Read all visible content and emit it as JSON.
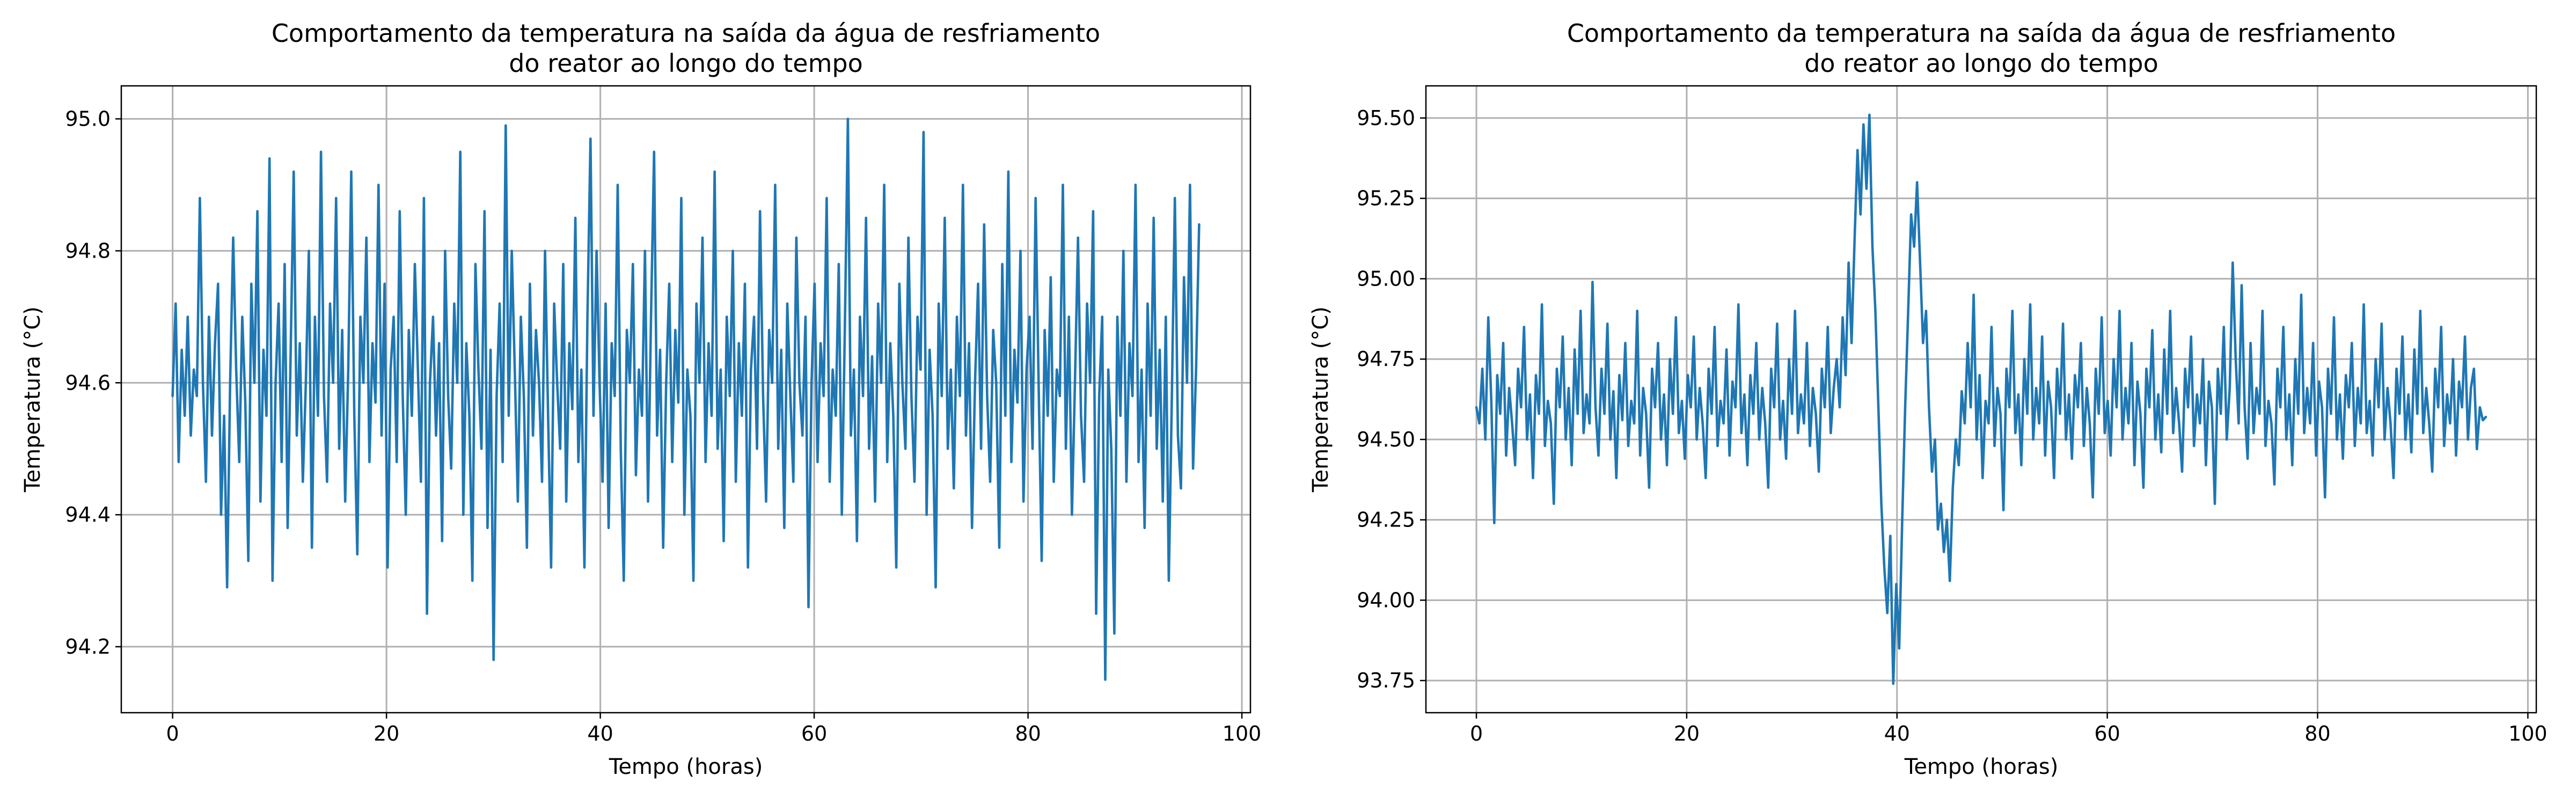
{
  "colors": {
    "series": "#1f77b4",
    "grid": "#b0b0b0",
    "axes": "#000000",
    "background": "#ffffff"
  },
  "chart_data": [
    {
      "type": "line",
      "title_line1": "Comportamento da temperatura na saída da água de resfriamento",
      "title_line2": "do reator ao longo do tempo",
      "xlabel": "Tempo (horas)",
      "ylabel": "Temperatura (°C)",
      "xlim": [
        -4.8,
        100.8
      ],
      "ylim": [
        94.1,
        95.05
      ],
      "xticks": [
        0,
        20,
        40,
        60,
        80,
        100
      ],
      "xtick_labels": [
        "0",
        "20",
        "40",
        "60",
        "80",
        "100"
      ],
      "yticks": [
        94.2,
        94.4,
        94.6,
        94.8,
        95.0
      ],
      "ytick_labels": [
        "94.2",
        "94.4",
        "94.6",
        "94.8",
        "95.0"
      ],
      "grid": true,
      "legend": "none",
      "series": [
        {
          "x_start": 0,
          "x_end": 96,
          "values": [
            94.58,
            94.72,
            94.48,
            94.65,
            94.55,
            94.7,
            94.52,
            94.62,
            94.58,
            94.88,
            94.6,
            94.45,
            94.7,
            94.52,
            94.66,
            94.75,
            94.4,
            94.55,
            94.29,
            94.6,
            94.82,
            94.62,
            94.48,
            94.7,
            94.57,
            94.33,
            94.75,
            94.6,
            94.86,
            94.42,
            94.65,
            94.55,
            94.94,
            94.3,
            94.6,
            94.72,
            94.48,
            94.78,
            94.38,
            94.65,
            94.92,
            94.52,
            94.66,
            94.45,
            94.6,
            94.8,
            94.35,
            94.7,
            94.55,
            94.95,
            94.58,
            94.45,
            94.72,
            94.6,
            94.88,
            94.5,
            94.68,
            94.42,
            94.62,
            94.92,
            94.55,
            94.34,
            94.7,
            94.6,
            94.82,
            94.48,
            94.66,
            94.57,
            94.9,
            94.52,
            94.75,
            94.32,
            94.62,
            94.7,
            94.48,
            94.86,
            94.58,
            94.4,
            94.68,
            94.55,
            94.78,
            94.62,
            94.45,
            94.88,
            94.25,
            94.6,
            94.7,
            94.52,
            94.66,
            94.36,
            94.8,
            94.58,
            94.47,
            94.72,
            94.6,
            94.95,
            94.4,
            94.66,
            94.55,
            94.3,
            94.78,
            94.62,
            94.5,
            94.86,
            94.38,
            94.65,
            94.18,
            94.58,
            94.72,
            94.48,
            94.99,
            94.55,
            94.8,
            94.62,
            94.42,
            94.7,
            94.58,
            94.35,
            94.75,
            94.52,
            94.68,
            94.6,
            94.45,
            94.8,
            94.55,
            94.32,
            94.72,
            94.6,
            94.5,
            94.78,
            94.42,
            94.66,
            94.56,
            94.85,
            94.48,
            94.62,
            94.32,
            94.7,
            94.97,
            94.55,
            94.8,
            94.6,
            94.45,
            94.72,
            94.38,
            94.66,
            94.58,
            94.9,
            94.5,
            94.3,
            94.68,
            94.6,
            94.78,
            94.46,
            94.62,
            94.55,
            94.8,
            94.42,
            94.7,
            94.95,
            94.52,
            94.65,
            94.35,
            94.6,
            94.75,
            94.48,
            94.68,
            94.57,
            94.88,
            94.4,
            94.62,
            94.55,
            94.3,
            94.72,
            94.6,
            94.82,
            94.48,
            94.66,
            94.55,
            94.92,
            94.5,
            94.62,
            94.36,
            94.7,
            94.58,
            94.8,
            94.45,
            94.66,
            94.55,
            94.75,
            94.32,
            94.62,
            94.7,
            94.5,
            94.86,
            94.58,
            94.42,
            94.68,
            94.6,
            94.9,
            94.5,
            94.65,
            94.38,
            94.72,
            94.58,
            94.45,
            94.82,
            94.6,
            94.52,
            94.7,
            94.26,
            94.6,
            94.75,
            94.48,
            94.66,
            94.58,
            94.88,
            94.45,
            94.62,
            94.55,
            94.78,
            94.4,
            94.68,
            95.0,
            94.52,
            94.62,
            94.36,
            94.7,
            94.58,
            94.85,
            94.5,
            94.64,
            94.42,
            94.72,
            94.6,
            94.9,
            94.48,
            94.66,
            94.55,
            94.32,
            94.75,
            94.6,
            94.5,
            94.82,
            94.58,
            94.45,
            94.7,
            94.62,
            94.98,
            94.4,
            94.65,
            94.55,
            94.29,
            94.72,
            94.58,
            94.85,
            94.5,
            94.62,
            94.44,
            94.7,
            94.58,
            94.9,
            94.52,
            94.66,
            94.38,
            94.6,
            94.75,
            94.5,
            94.84,
            94.58,
            94.45,
            94.68,
            94.6,
            94.35,
            94.78,
            94.55,
            94.92,
            94.48,
            94.65,
            94.57,
            94.8,
            94.42,
            94.62,
            94.7,
            94.5,
            94.88,
            94.6,
            94.33,
            94.68,
            94.55,
            94.76,
            94.45,
            94.62,
            94.58,
            94.9,
            94.5,
            94.7,
            94.4,
            94.6,
            94.82,
            94.55,
            94.45,
            94.72,
            94.6,
            94.86,
            94.25,
            94.58,
            94.7,
            94.15,
            94.62,
            94.5,
            94.22,
            94.7,
            94.55,
            94.8,
            94.45,
            94.66,
            94.58,
            94.9,
            94.48,
            94.62,
            94.38,
            94.72,
            94.55,
            94.85,
            94.5,
            94.65,
            94.42,
            94.7,
            94.3,
            94.58,
            94.88,
            94.52,
            94.44,
            94.76,
            94.6,
            94.9,
            94.47,
            94.62,
            94.84
          ]
        }
      ]
    },
    {
      "type": "line",
      "title_line1": "Comportamento da temperatura na saída da água de resfriamento",
      "title_line2": "do reator ao longo do tempo",
      "xlabel": "Tempo (horas)",
      "ylabel": "Temperatura (°C)",
      "xlim": [
        -4.8,
        100.8
      ],
      "ylim": [
        93.65,
        95.6
      ],
      "xticks": [
        0,
        20,
        40,
        60,
        80,
        100
      ],
      "xtick_labels": [
        "0",
        "20",
        "40",
        "60",
        "80",
        "100"
      ],
      "yticks": [
        93.75,
        94.0,
        94.25,
        94.5,
        94.75,
        95.0,
        95.25,
        95.5
      ],
      "ytick_labels": [
        "93.75",
        "94.00",
        "94.25",
        "94.50",
        "94.75",
        "95.00",
        "95.25",
        "95.50"
      ],
      "grid": true,
      "legend": "none",
      "series": [
        {
          "x_start": 0,
          "x_end": 96,
          "values": [
            94.6,
            94.55,
            94.72,
            94.5,
            94.88,
            94.62,
            94.24,
            94.7,
            94.58,
            94.8,
            94.45,
            94.66,
            94.55,
            94.42,
            94.72,
            94.6,
            94.85,
            94.5,
            94.64,
            94.38,
            94.7,
            94.58,
            94.92,
            94.48,
            94.62,
            94.55,
            94.3,
            94.72,
            94.6,
            94.82,
            94.5,
            94.66,
            94.42,
            94.78,
            94.58,
            94.9,
            94.52,
            94.64,
            94.55,
            94.99,
            94.6,
            94.45,
            94.72,
            94.58,
            94.86,
            94.5,
            94.65,
            94.38,
            94.7,
            94.56,
            94.8,
            94.48,
            94.62,
            94.55,
            94.9,
            94.45,
            94.66,
            94.58,
            94.35,
            94.72,
            94.6,
            94.8,
            94.5,
            94.64,
            94.42,
            94.75,
            94.58,
            94.88,
            94.52,
            94.62,
            94.44,
            94.7,
            94.6,
            94.82,
            94.5,
            94.66,
            94.55,
            94.38,
            94.72,
            94.58,
            94.85,
            94.48,
            94.62,
            94.55,
            94.78,
            94.45,
            94.68,
            94.6,
            94.92,
            94.52,
            94.64,
            94.42,
            94.7,
            94.58,
            94.8,
            94.5,
            94.66,
            94.55,
            94.35,
            94.72,
            94.6,
            94.86,
            94.5,
            94.62,
            94.44,
            94.75,
            94.58,
            94.9,
            94.52,
            94.64,
            94.55,
            94.8,
            94.48,
            94.66,
            94.58,
            94.4,
            94.72,
            94.6,
            94.85,
            94.52,
            94.66,
            94.75,
            94.6,
            94.88,
            94.7,
            95.05,
            94.8,
            95.12,
            95.4,
            95.2,
            95.48,
            95.28,
            95.51,
            95.1,
            94.9,
            94.6,
            94.3,
            94.1,
            93.96,
            94.2,
            93.74,
            94.05,
            93.85,
            94.25,
            94.6,
            94.9,
            95.2,
            95.1,
            95.3,
            95.05,
            94.8,
            94.9,
            94.6,
            94.4,
            94.5,
            94.22,
            94.3,
            94.15,
            94.25,
            94.06,
            94.35,
            94.5,
            94.42,
            94.65,
            94.55,
            94.8,
            94.6,
            94.95,
            94.5,
            94.7,
            94.38,
            94.62,
            94.55,
            94.85,
            94.48,
            94.66,
            94.58,
            94.28,
            94.72,
            94.6,
            94.9,
            94.52,
            94.64,
            94.42,
            94.75,
            94.58,
            94.92,
            94.5,
            94.66,
            94.55,
            94.82,
            94.45,
            94.68,
            94.6,
            94.38,
            94.72,
            94.58,
            94.86,
            94.5,
            94.64,
            94.44,
            94.7,
            94.6,
            94.8,
            94.48,
            94.66,
            94.55,
            94.32,
            94.72,
            94.58,
            94.88,
            94.52,
            94.62,
            94.45,
            94.75,
            94.6,
            94.9,
            94.5,
            94.66,
            94.55,
            94.8,
            94.42,
            94.68,
            94.58,
            94.35,
            94.72,
            94.6,
            94.84,
            94.5,
            94.64,
            94.46,
            94.78,
            94.58,
            94.9,
            94.52,
            94.66,
            94.55,
            94.4,
            94.72,
            94.6,
            94.82,
            94.48,
            94.64,
            94.55,
            94.75,
            94.42,
            94.68,
            94.6,
            94.3,
            94.72,
            94.58,
            94.85,
            94.5,
            94.66,
            95.05,
            94.75,
            94.55,
            94.98,
            94.6,
            94.44,
            94.8,
            94.52,
            94.66,
            94.58,
            94.9,
            94.48,
            94.62,
            94.55,
            94.36,
            94.72,
            94.6,
            94.85,
            94.5,
            94.64,
            94.42,
            94.75,
            94.58,
            94.95,
            94.52,
            94.66,
            94.55,
            94.8,
            94.45,
            94.68,
            94.6,
            94.32,
            94.72,
            94.58,
            94.88,
            94.5,
            94.64,
            94.44,
            94.7,
            94.6,
            94.8,
            94.48,
            94.66,
            94.55,
            94.92,
            94.52,
            94.62,
            94.45,
            94.75,
            94.6,
            94.86,
            94.5,
            94.66,
            94.55,
            94.38,
            94.72,
            94.58,
            94.82,
            94.5,
            94.64,
            94.46,
            94.78,
            94.58,
            94.9,
            94.52,
            94.66,
            94.55,
            94.4,
            94.72,
            94.6,
            94.85,
            94.48,
            94.64,
            94.55,
            94.75,
            94.45,
            94.68,
            94.6,
            94.82,
            94.5,
            94.66,
            94.72,
            94.47,
            94.6,
            94.56,
            94.57
          ]
        }
      ]
    }
  ]
}
